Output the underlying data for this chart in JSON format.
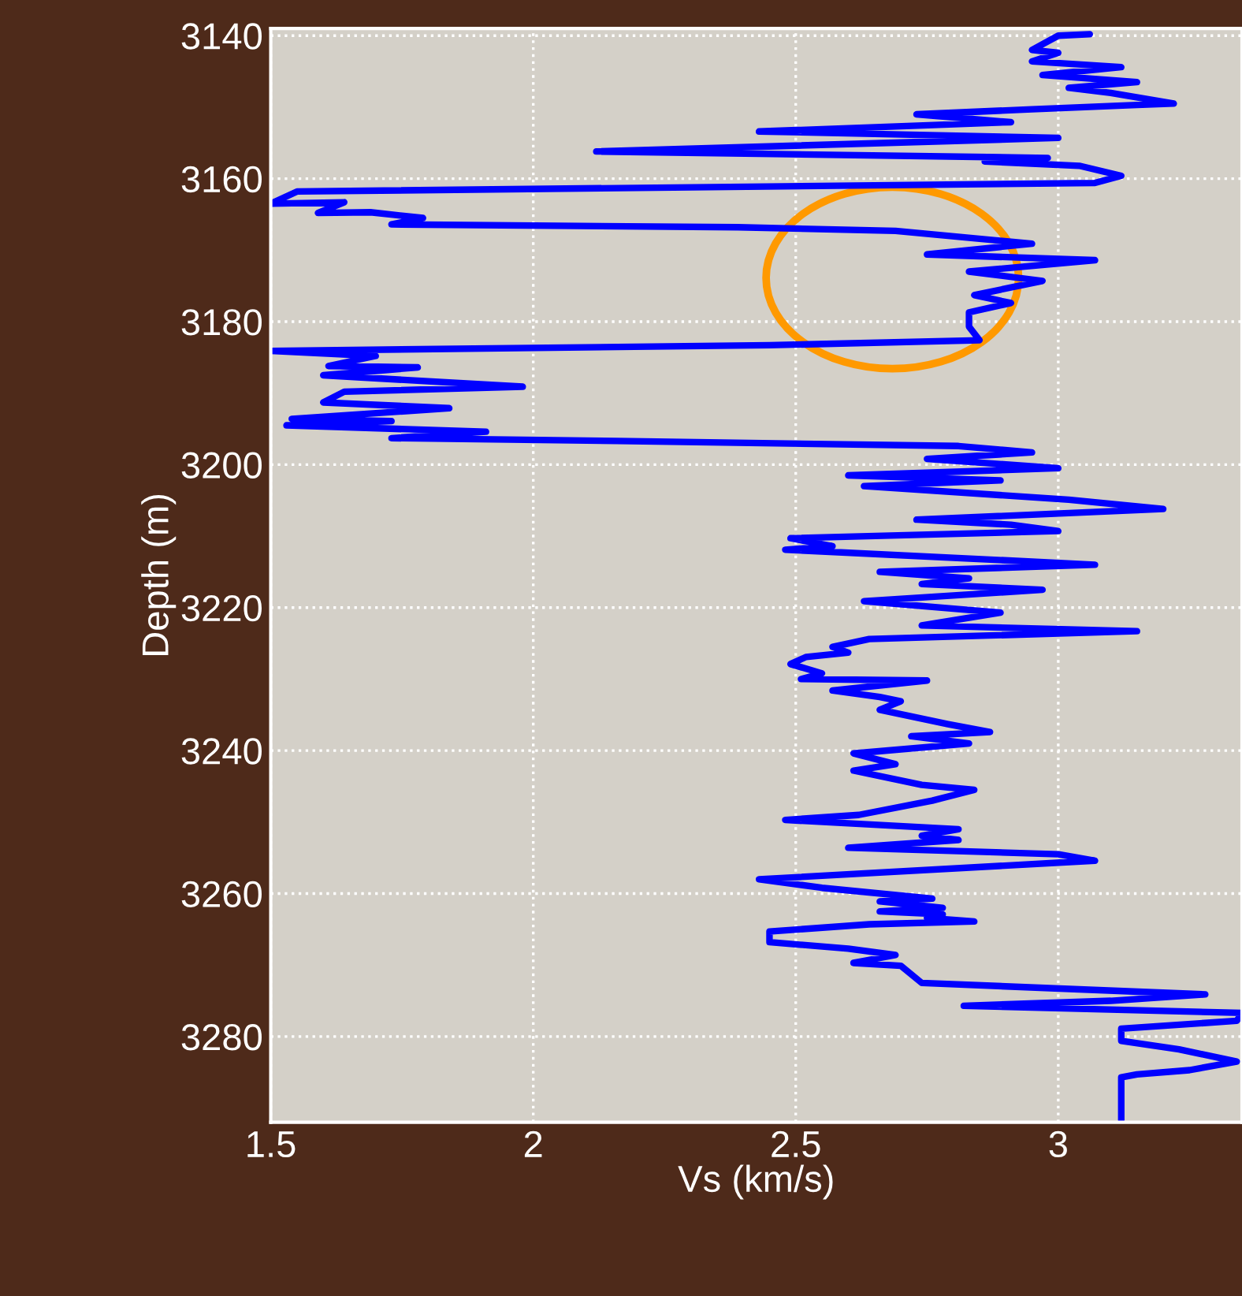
{
  "chart_data": {
    "type": "line",
    "xlabel": "Vs (km/s)",
    "ylabel": "Depth (m)",
    "xlim": [
      1.5,
      3.35
    ],
    "xticks": [
      1.5,
      2,
      2.5,
      3
    ],
    "ylim": [
      3292,
      3139
    ],
    "yticks": [
      3140,
      3160,
      3180,
      3200,
      3220,
      3240,
      3260,
      3280
    ],
    "grid": true,
    "line_style": "solid",
    "marker": "none",
    "series": [
      {
        "color": "#0000ff",
        "x": [
          3.06,
          3.0,
          2.95,
          3.0,
          2.95,
          3.12,
          2.97,
          3.15,
          3.02,
          3.1,
          3.22,
          3.15,
          2.95,
          2.73,
          2.91,
          2.43,
          3.0,
          2.12,
          2.98,
          2.86,
          3.04,
          3.12,
          3.07,
          1.55,
          1.5,
          1.64,
          1.59,
          1.69,
          1.79,
          1.73,
          2.39,
          2.69,
          2.95,
          2.75,
          3.07,
          2.83,
          2.97,
          2.84,
          2.91,
          2.83,
          2.83,
          2.85,
          2.45,
          1.5,
          1.7,
          1.61,
          1.78,
          1.6,
          1.98,
          1.64,
          1.6,
          1.84,
          1.54,
          1.73,
          1.53,
          1.91,
          1.73,
          2.16,
          2.81,
          2.95,
          2.75,
          3.0,
          2.6,
          2.89,
          2.63,
          3.02,
          3.2,
          2.73,
          2.91,
          3.0,
          2.49,
          2.57,
          2.48,
          3.07,
          2.66,
          2.83,
          2.74,
          2.97,
          2.63,
          2.89,
          2.74,
          3.15,
          2.64,
          2.57,
          2.6,
          2.52,
          2.49,
          2.55,
          2.51,
          2.75,
          2.57,
          2.66,
          2.7,
          2.66,
          2.79,
          2.87,
          2.72,
          2.83,
          2.61,
          2.69,
          2.61,
          2.74,
          2.84,
          2.76,
          2.62,
          2.48,
          2.81,
          2.74,
          2.81,
          2.6,
          3.0,
          3.07,
          2.43,
          2.55,
          2.76,
          2.66,
          2.78,
          2.66,
          2.78,
          2.75,
          2.84,
          2.64,
          2.45,
          2.45,
          2.6,
          2.69,
          2.61,
          2.7,
          2.74,
          3.04,
          3.28,
          3.1,
          2.82,
          3.35,
          3.34,
          3.12,
          3.12,
          3.23,
          3.34,
          3.25,
          3.15,
          3.12,
          3.12
        ],
        "values": [
          3139.8,
          3140,
          3142,
          3142.4,
          3143.6,
          3144.4,
          3145.5,
          3146.5,
          3147.3,
          3148,
          3149.5,
          3149.7,
          3150.3,
          3151,
          3152.1,
          3153.4,
          3154.3,
          3156.2,
          3157.1,
          3157.6,
          3158.2,
          3159.6,
          3160.6,
          3161.8,
          3163.5,
          3163.3,
          3164.8,
          3164.7,
          3165.5,
          3166.4,
          3166.8,
          3167.3,
          3169.1,
          3170.6,
          3171.4,
          3173,
          3174.3,
          3176.3,
          3177.4,
          3178.7,
          3180.7,
          3182.6,
          3183.3,
          3184.1,
          3184.8,
          3186.2,
          3186.4,
          3187.5,
          3189.1,
          3189.8,
          3191.3,
          3192.1,
          3193.6,
          3193.9,
          3194.5,
          3195.4,
          3196.3,
          3196.7,
          3197.4,
          3198.3,
          3199.2,
          3200.5,
          3201.5,
          3202.2,
          3203,
          3204.9,
          3206.2,
          3207.7,
          3208.4,
          3209.3,
          3210.3,
          3211.4,
          3211.9,
          3214,
          3215,
          3215.9,
          3216.7,
          3217.5,
          3219.1,
          3220.7,
          3222.5,
          3223.3,
          3224.4,
          3225.5,
          3226.3,
          3226.9,
          3227.9,
          3229.2,
          3230,
          3230.2,
          3231.6,
          3232.5,
          3233.1,
          3234.3,
          3236.3,
          3237.4,
          3238,
          3239,
          3240.4,
          3241.9,
          3242.8,
          3244.8,
          3245.5,
          3247,
          3249,
          3249.7,
          3251,
          3251.9,
          3252.5,
          3253.6,
          3254.5,
          3255.4,
          3258,
          3259.2,
          3260.7,
          3261.1,
          3262,
          3262.5,
          3262.9,
          3263.4,
          3263.9,
          3264.3,
          3265.3,
          3266.8,
          3267.7,
          3268.6,
          3269.7,
          3270.1,
          3272.5,
          3273.4,
          3274.1,
          3275,
          3275.7,
          3276.7,
          3277.8,
          3278.9,
          3280.6,
          3281.8,
          3283.5,
          3284.7,
          3285.3,
          3285.7,
          3291.7
        ]
      }
    ]
  }
}
